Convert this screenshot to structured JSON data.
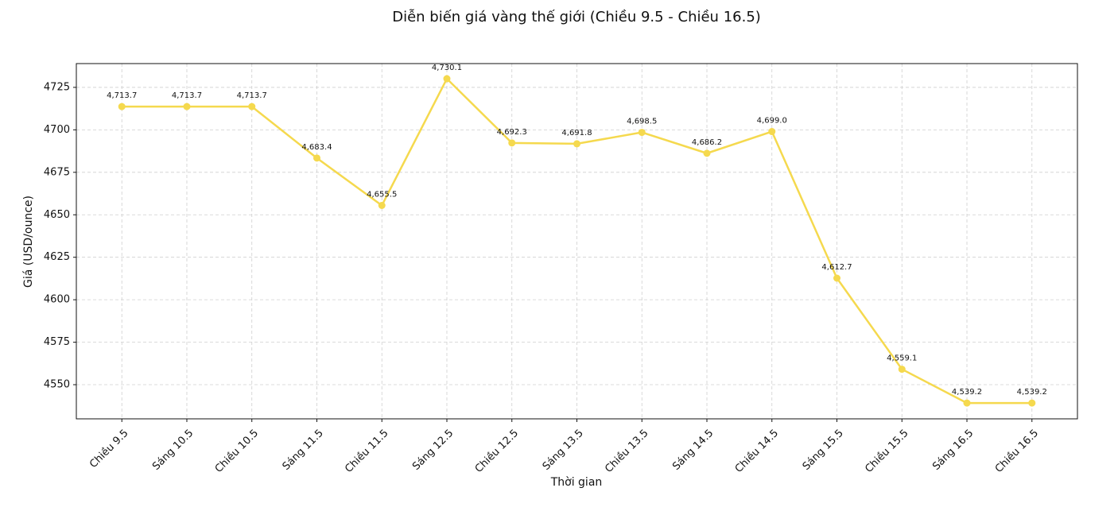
{
  "chart_data": {
    "type": "line",
    "title": "Diễn biến giá vàng thế giới (Chiều 9.5 - Chiều 16.5)",
    "x_label": "Thời gian",
    "y_label": "Giá (USD/ounce)",
    "categories": [
      "Chiều 9.5",
      "Sáng 10.5",
      "Chiều 10.5",
      "Sáng 11.5",
      "Chiều 11.5",
      "Sáng 12.5",
      "Chiều 12.5",
      "Sáng 13.5",
      "Chiều 13.5",
      "Sáng 14.5",
      "Chiều 14.5",
      "Sáng 15.5",
      "Chiều 15.5",
      "Sáng 16.5",
      "Chiều 16.5"
    ],
    "values": [
      4713.7,
      4713.7,
      4713.7,
      4683.4,
      4655.5,
      4730.1,
      4692.3,
      4691.8,
      4698.5,
      4686.2,
      4699.0,
      4612.7,
      4559.1,
      4539.2,
      4539.2
    ],
    "value_labels": [
      "4,713.7",
      "4,713.7",
      "4,713.7",
      "4,683.4",
      "4,655.5",
      "4,730.1",
      "4,692.3",
      "4,691.8",
      "4,698.5",
      "4,686.2",
      "4,699.0",
      "4,612.7",
      "4,559.1",
      "4,539.2",
      "4,539.2"
    ],
    "color": "#f5d94e",
    "ylim": [
      4529.9,
      4739.0
    ],
    "yticks": [
      4550,
      4575,
      4600,
      4625,
      4650,
      4675,
      4700,
      4725
    ],
    "grid": true
  }
}
